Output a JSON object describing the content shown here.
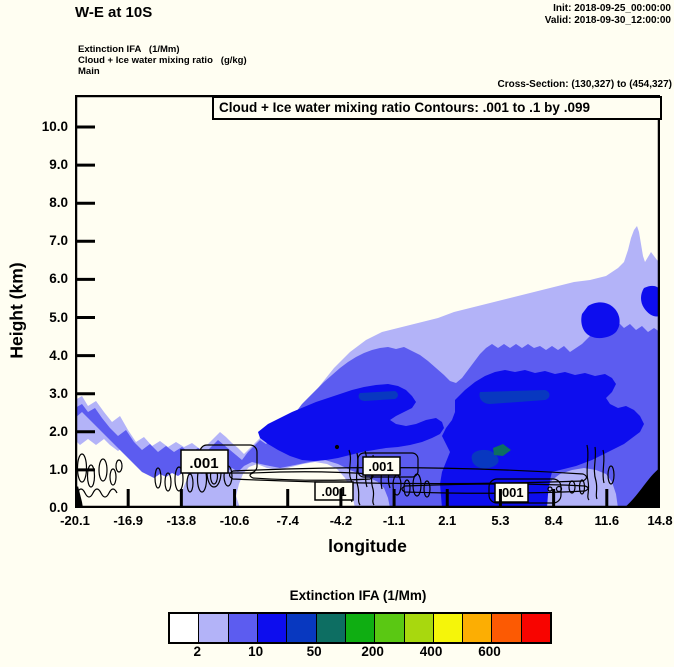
{
  "header": {
    "title": "W-E at 10S",
    "init": "Init: 2018-09-25_00:00:00",
    "valid": "Valid: 2018-09-30_12:00:00"
  },
  "field_info": {
    "line1": "Extinction IFA   (1/Mm)",
    "line2": "Cloud + Ice water mixing ratio   (g/kg)",
    "line3": "Main",
    "cross_section": "Cross-Section: (130,327) to (454,327)"
  },
  "plot": {
    "contour_note": "Cloud + Ice water mixing ratio Contours: .001 to .1 by .099",
    "contour_label": ".001"
  },
  "axes": {
    "y_label": "Height (km)",
    "y_ticks": [
      "0.0",
      "1.0",
      "2.0",
      "3.0",
      "4.0",
      "5.0",
      "6.0",
      "7.0",
      "8.0",
      "9.0",
      "10.0"
    ],
    "x_label": "longitude",
    "x_ticks": [
      "-20.1",
      "-16.9",
      "-13.8",
      "-10.6",
      "-7.4",
      "-4.2",
      "-1.1",
      "2.1",
      "5.3",
      "8.4",
      "11.6",
      "14.8"
    ]
  },
  "colorbar": {
    "title": "Extinction IFA  (1/Mm)",
    "colors": [
      "#ffffff",
      "#b3b3f8",
      "#5c5cf0",
      "#0d0dee",
      "#0838c0",
      "#0d6e62",
      "#0fae12",
      "#5ac813",
      "#a8d80e",
      "#f5f50a",
      "#fcae03",
      "#fc5a03",
      "#f80400"
    ],
    "tick_labels": [
      "2",
      "10",
      "50",
      "200",
      "400",
      "600"
    ],
    "tick_positions": [
      1,
      3,
      5,
      7,
      9,
      11
    ]
  },
  "chart_data": {
    "type": "heatmap",
    "subtype": "filled-contour-vertical-cross-section",
    "title": "W-E at 10S",
    "xlabel": "longitude",
    "ylabel": "Height (km)",
    "xlim": [
      -20.1,
      14.8
    ],
    "ylim": [
      0,
      10.8
    ],
    "x_tick_values": [
      -20.1,
      -16.9,
      -13.8,
      -10.6,
      -7.4,
      -4.2,
      -1.1,
      2.1,
      5.3,
      8.4,
      11.6,
      14.8
    ],
    "y_tick_values": [
      0,
      1,
      2,
      3,
      4,
      5,
      6,
      7,
      8,
      9,
      10
    ],
    "shaded_variable": "Extinction IFA (1/Mm)",
    "shaded_scale_labeled_levels": [
      2,
      10,
      50,
      200,
      400,
      600
    ],
    "shaded_palette_hex": [
      "#ffffff",
      "#b3b3f8",
      "#5c5cf0",
      "#0d0dee",
      "#0838c0",
      "#0d6e62",
      "#0fae12",
      "#5ac813",
      "#a8d80e",
      "#f5f50a",
      "#fcae03",
      "#fc5a03",
      "#f80400"
    ],
    "line_variable": "Cloud + Ice water mixing ratio (g/kg)",
    "line_contour_levels": ".001 to .1 by .099",
    "visible_line_contour_labels": [
      ".001",
      ".001",
      ".001",
      ".001"
    ],
    "features": [
      "Aerosol/extinction plume (light lavender, level >= 2 /Mm) extends from ~2.7 km at lon -20.1 sloping up to ~5-6 km across lon -8 to 12, with a spike to ~7.3 km near lon 13.5",
      "Moderate extinction (blue-violet, >= 10 /Mm) fills most of plume interior from ~0-4.5 km between lon -6 and 14.8",
      "High extinction cores (bright blue, >= 50 /Mm) near 2-3 km between lon -9 and -1, and 1-3.5 km between lon 4 and 14.8, with a column reaching the surface near lon 1-3",
      "Small very-high extinction patches (dark blue ~200 /Mm and teal ~400 /Mm) near lon 5, 0.9-1.7 km",
      "Cloud mixing-ratio .001 g/kg line contours hug 0.3-1.5 km across the section",
      "Black terrain wedge at bottom-right corner (lon > 13) and tiny terrain spike at far left"
    ],
    "legend_position": "bottom"
  }
}
